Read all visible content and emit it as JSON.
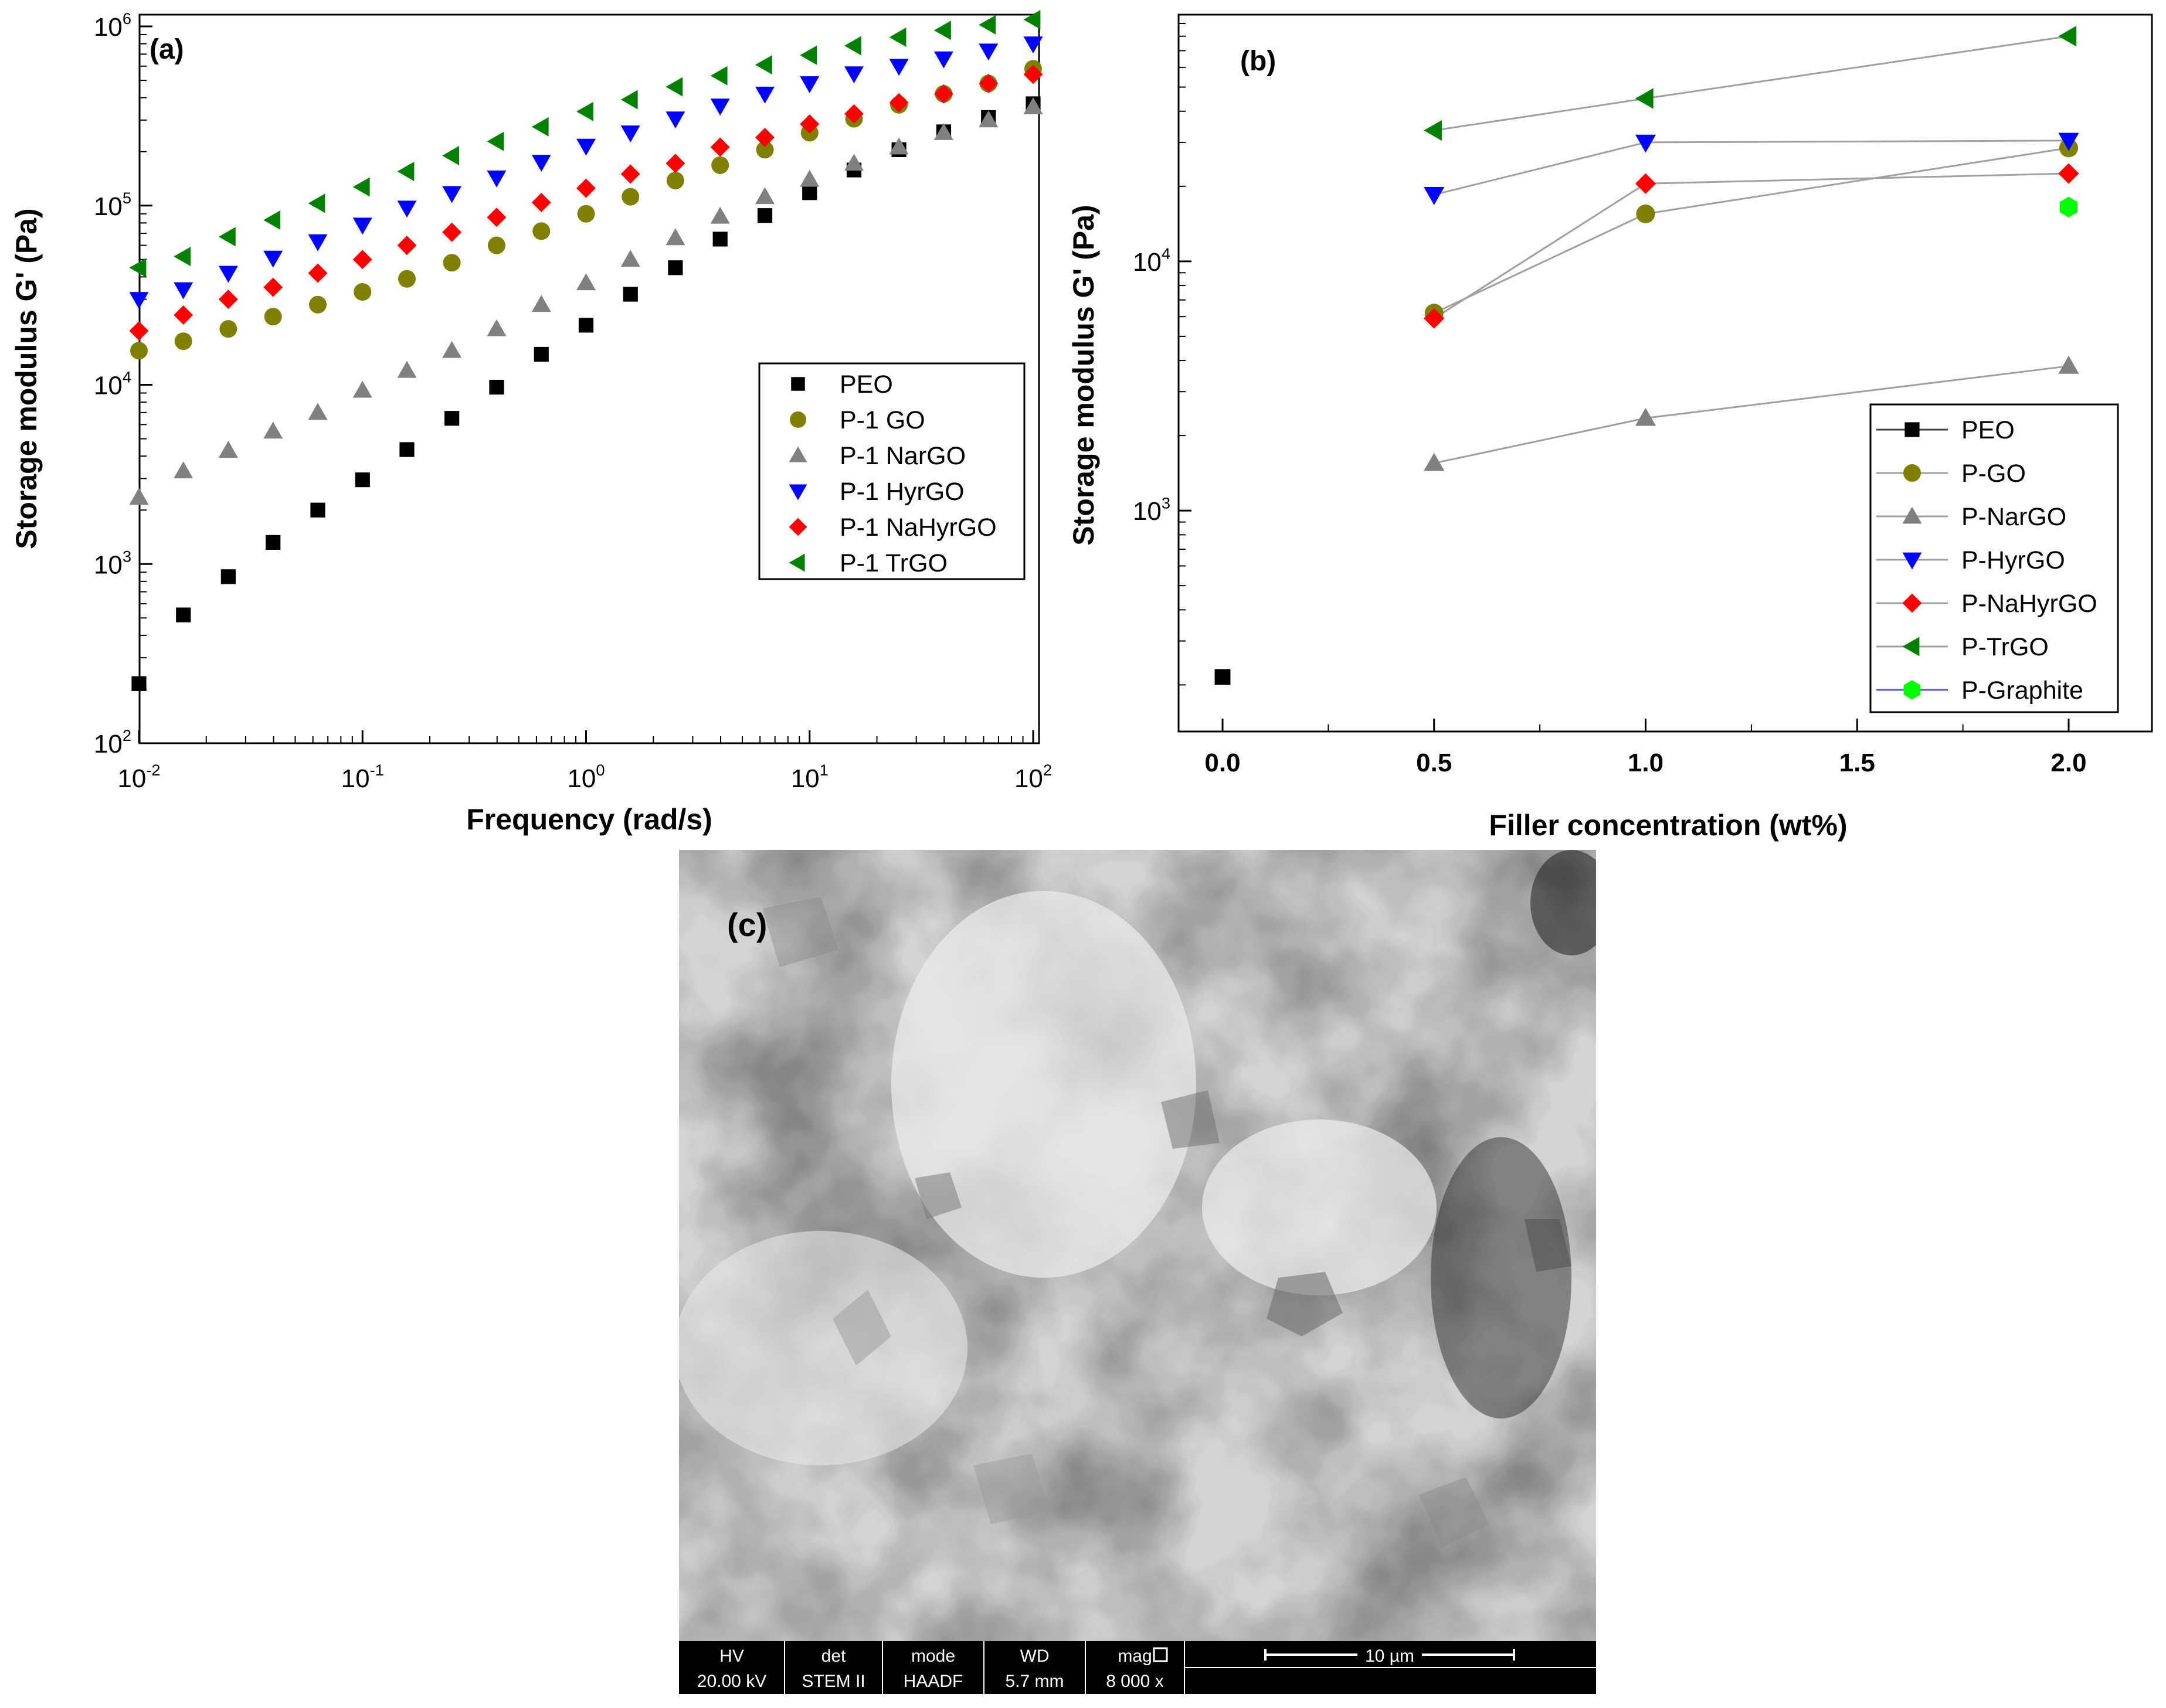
{
  "chart_data": [
    {
      "type": "scatter",
      "panel_label": "(a)",
      "xlabel": "Frequency (rad/s)",
      "ylabel": "Storage modulus G' (Pa)",
      "xscale": "log",
      "yscale": "log",
      "xlim": [
        0.01,
        100
      ],
      "ylim": [
        100,
        1000000
      ],
      "x_ticks": [
        {
          "base": "10",
          "exp": "-2"
        },
        {
          "base": "10",
          "exp": "-1"
        },
        {
          "base": "10",
          "exp": "0"
        },
        {
          "base": "10",
          "exp": "1"
        },
        {
          "base": "10",
          "exp": "2"
        }
      ],
      "y_ticks": [
        {
          "base": "10",
          "exp": "2"
        },
        {
          "base": "10",
          "exp": "3"
        },
        {
          "base": "10",
          "exp": "4"
        },
        {
          "base": "10",
          "exp": "5"
        },
        {
          "base": "10",
          "exp": "6"
        }
      ],
      "legend_position": "center-right",
      "x": [
        0.01,
        0.0158,
        0.0251,
        0.0398,
        0.0631,
        0.1,
        0.158,
        0.251,
        0.398,
        0.631,
        1,
        1.58,
        2.51,
        3.98,
        6.31,
        10,
        15.8,
        25.1,
        39.8,
        63.1,
        100
      ],
      "series": [
        {
          "name": "PEO",
          "marker": "square",
          "color": "#000000",
          "values": [
            215,
            520,
            850,
            1320,
            2000,
            2950,
            4350,
            6500,
            9700,
            14800,
            21500,
            32000,
            45000,
            65000,
            88000,
            118000,
            158000,
            205000,
            258000,
            310000,
            370000
          ]
        },
        {
          "name": "P-1 GO",
          "marker": "circle",
          "color": "#808000",
          "values": [
            15500,
            17500,
            20500,
            24000,
            28000,
            33000,
            39000,
            48000,
            60000,
            72000,
            90000,
            112000,
            138000,
            168000,
            205000,
            255000,
            305000,
            365000,
            420000,
            480000,
            580000
          ]
        },
        {
          "name": "P-1 NarGO",
          "marker": "triangle-up",
          "color": "#808080",
          "values": [
            2350,
            3300,
            4300,
            5500,
            7000,
            9300,
            12000,
            15500,
            20500,
            28000,
            37000,
            50000,
            66000,
            87000,
            112000,
            140000,
            172000,
            212000,
            255000,
            300000,
            355000
          ]
        },
        {
          "name": "P-1 HyrGO",
          "marker": "triangle-down",
          "color": "#0000ff",
          "values": [
            30000,
            34000,
            42000,
            51000,
            63000,
            78000,
            97000,
            117000,
            143000,
            175000,
            215000,
            255000,
            305000,
            360000,
            420000,
            480000,
            545000,
            600000,
            660000,
            730000,
            800000
          ]
        },
        {
          "name": "P-1 NaHyrGO",
          "marker": "diamond",
          "color": "#ff0000",
          "values": [
            20000,
            24500,
            30000,
            35000,
            42000,
            50000,
            60000,
            71000,
            86000,
            104000,
            125000,
            150000,
            172000,
            212000,
            240000,
            285000,
            325000,
            375000,
            420000,
            480000,
            540000
          ]
        },
        {
          "name": "P-1 TrGO",
          "marker": "triangle-left",
          "color": "#008000",
          "values": [
            45000,
            52000,
            67000,
            83000,
            103000,
            127000,
            155000,
            190000,
            228000,
            275000,
            335000,
            390000,
            460000,
            530000,
            610000,
            690000,
            780000,
            870000,
            950000,
            1020000,
            1090000
          ]
        }
      ]
    },
    {
      "type": "line",
      "panel_label": "(b)",
      "xlabel": "Filler concentration (wt%)",
      "ylabel": "Storage modulus G' (Pa)",
      "xscale": "linear",
      "yscale": "log",
      "xlim": [
        -0.1,
        2.2
      ],
      "ylim": [
        130,
        90000
      ],
      "x_ticks": [
        "0.0",
        "0.5",
        "1.0",
        "1.5",
        "2.0"
      ],
      "y_ticks": [
        {
          "base": "10",
          "exp": "3"
        },
        {
          "base": "10",
          "exp": "4"
        }
      ],
      "legend_position": "bottom-right",
      "series": [
        {
          "name": "PEO",
          "marker": "square",
          "color": "#000000",
          "x": [
            0.0
          ],
          "values": [
            215
          ]
        },
        {
          "name": "P-GO",
          "marker": "circle",
          "color": "#808000",
          "x": [
            0.5,
            1.0,
            2.0
          ],
          "values": [
            6200,
            15500,
            28500
          ]
        },
        {
          "name": "P-NarGO",
          "marker": "triangle-up",
          "color": "#808080",
          "x": [
            0.5,
            1.0,
            2.0
          ],
          "values": [
            1550,
            2350,
            3800
          ]
        },
        {
          "name": "P-HyrGO",
          "marker": "triangle-down",
          "color": "#0000ff",
          "x": [
            0.5,
            1.0,
            2.0
          ],
          "values": [
            18500,
            30000,
            30500
          ]
        },
        {
          "name": "P-NaHyrGO",
          "marker": "diamond",
          "color": "#ff0000",
          "x": [
            0.5,
            1.0,
            2.0
          ],
          "values": [
            5900,
            20500,
            22500
          ]
        },
        {
          "name": "P-TrGO",
          "marker": "triangle-left",
          "color": "#008000",
          "x": [
            0.5,
            1.0,
            2.0
          ],
          "values": [
            33500,
            45000,
            80000
          ]
        },
        {
          "name": "P-Graphite",
          "marker": "hexagon",
          "color": "#00ff00",
          "x": [
            2.0
          ],
          "values": [
            16500
          ]
        }
      ]
    }
  ],
  "micrograph": {
    "panel_label": "(c)",
    "info_bar": {
      "columns": [
        {
          "header": "HV",
          "value": "20.00 kV"
        },
        {
          "header": "det",
          "value": "STEM II"
        },
        {
          "header": "mode",
          "value": "HAADF"
        },
        {
          "header": "WD",
          "value": "5.7 mm"
        },
        {
          "header": "mag",
          "value": "8 000 x"
        }
      ],
      "scale_bar_label": "10 µm"
    }
  }
}
